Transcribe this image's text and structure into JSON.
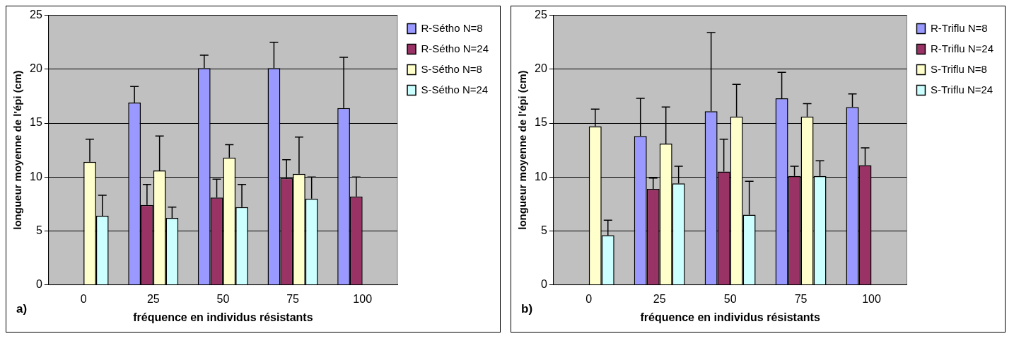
{
  "chart_data": [
    {
      "type": "bar",
      "categories": [
        "0",
        "25",
        "50",
        "75",
        "100"
      ],
      "xlabel": "fréquence en individus résistants",
      "ylabel": "longueur moyenne de l'épi (cm)",
      "ylim": [
        0,
        25
      ],
      "yticks": [
        0,
        5,
        10,
        15,
        20,
        25
      ],
      "grid": "y",
      "legend": "top right",
      "annotations": [
        "a)"
      ],
      "series": [
        {
          "name": "R-Sétho N=8",
          "color": "#9999ff",
          "values": [
            null,
            16.9,
            20.1,
            20.1,
            16.4
          ],
          "errors": [
            null,
            [
              16.9,
              18.4
            ],
            [
              20.1,
              21.3
            ],
            [
              20.1,
              22.5
            ],
            [
              16.4,
              21.1
            ]
          ]
        },
        {
          "name": "R-Sétho N=24",
          "color": "#993366",
          "values": [
            null,
            7.4,
            8.1,
            9.9,
            8.2
          ],
          "errors": [
            null,
            [
              7.4,
              9.3
            ],
            [
              8.1,
              9.8
            ],
            [
              9.9,
              11.6
            ],
            [
              8.2,
              10.0
            ]
          ]
        },
        {
          "name": "S-Sétho N=8",
          "color": "#ffffcc",
          "values": [
            11.4,
            10.6,
            11.8,
            10.3,
            null
          ],
          "errors": [
            [
              11.4,
              13.5
            ],
            [
              10.6,
              13.8
            ],
            [
              11.8,
              13.0
            ],
            [
              10.3,
              13.7
            ],
            null
          ]
        },
        {
          "name": "S-Sétho N=24",
          "color": "#ccffff",
          "values": [
            6.4,
            6.2,
            7.2,
            8.0,
            null
          ],
          "errors": [
            [
              6.4,
              8.3
            ],
            [
              6.2,
              7.2
            ],
            [
              7.2,
              9.3
            ],
            [
              8.0,
              10.0
            ],
            null
          ]
        }
      ]
    },
    {
      "type": "bar",
      "categories": [
        "0",
        "25",
        "50",
        "75",
        "100"
      ],
      "xlabel": "fréquence en individus résistants",
      "ylabel": "longueur moyenne de l'épi (cm)",
      "ylim": [
        0,
        25
      ],
      "yticks": [
        0,
        5,
        10,
        15,
        20,
        25
      ],
      "grid": "y",
      "legend": "top right",
      "annotations": [
        "b)"
      ],
      "series": [
        {
          "name": "R-Triflu N=8",
          "color": "#9999ff",
          "values": [
            null,
            13.8,
            16.1,
            17.3,
            16.5
          ],
          "errors": [
            null,
            [
              13.8,
              17.3
            ],
            [
              16.1,
              23.4
            ],
            [
              17.3,
              19.7
            ],
            [
              16.5,
              17.7
            ]
          ]
        },
        {
          "name": "R-Triflu N=24",
          "color": "#993366",
          "values": [
            null,
            8.9,
            10.5,
            10.1,
            11.1
          ],
          "errors": [
            null,
            [
              8.9,
              9.9
            ],
            [
              10.5,
              13.5
            ],
            [
              10.1,
              11.0
            ],
            [
              11.1,
              12.7
            ]
          ]
        },
        {
          "name": "S-Triflu N=8",
          "color": "#ffffcc",
          "values": [
            14.7,
            13.1,
            15.6,
            15.6,
            null
          ],
          "errors": [
            [
              14.7,
              16.3
            ],
            [
              13.1,
              16.5
            ],
            [
              15.6,
              18.6
            ],
            [
              15.6,
              16.8
            ],
            null
          ]
        },
        {
          "name": "S-Triflu N=24",
          "color": "#ccffff",
          "values": [
            4.6,
            9.4,
            6.5,
            10.1,
            null
          ],
          "errors": [
            [
              4.6,
              6.0
            ],
            [
              9.4,
              11.0
            ],
            [
              6.5,
              9.6
            ],
            [
              10.1,
              11.5
            ],
            null
          ]
        }
      ]
    }
  ]
}
